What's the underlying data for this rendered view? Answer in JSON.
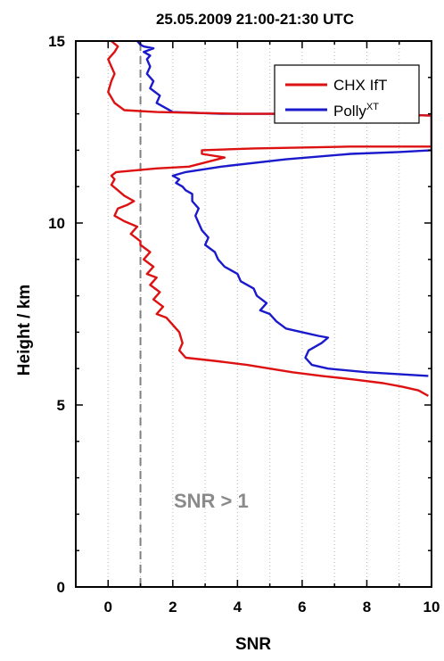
{
  "chart_data": {
    "type": "line",
    "title": "25.05.2009   21:00-21:30 UTC",
    "xlabel": "SNR",
    "ylabel": "Height / km",
    "xlim": [
      -1,
      10
    ],
    "ylim": [
      0,
      15
    ],
    "xticks": [
      "0",
      "2",
      "4",
      "6",
      "8",
      "10"
    ],
    "yticks": [
      "0",
      "5",
      "10",
      "15"
    ],
    "grid": "vertical dotted",
    "legend_position": "top-right",
    "annotation": "SNR > 1",
    "reference_line": {
      "x": 1,
      "style": "dashed",
      "color": "#808080"
    },
    "colors": {
      "chx": "#dd1111",
      "polly": "#1a1acc",
      "reference": "#808080"
    },
    "series": [
      {
        "name": "CHX IfT",
        "legend_label": "CHX IfT",
        "x": [
          9.9,
          9.6,
          9.1,
          8.5,
          7.6,
          6.6,
          5.7,
          5.0,
          4.3,
          3.4,
          2.9,
          2.4,
          2.2,
          2.3,
          2.2,
          2.0,
          1.8,
          1.5,
          1.7,
          1.4,
          1.6,
          1.3,
          1.5,
          1.2,
          1.4,
          1.1,
          1.3,
          1.0,
          1.0,
          0.7,
          0.9,
          0.5,
          0.2,
          0.3,
          0.6,
          0.8,
          0.5,
          0.3,
          0.1,
          0.2,
          0.1,
          0.25,
          1.5,
          2.5,
          3.6,
          2.9,
          2.9,
          4.5,
          7.5,
          10.0,
          10.0,
          7.5,
          4.0,
          1.5,
          0.5,
          0.2,
          0.0,
          0.1,
          0.2,
          0.1,
          0.0,
          0.2,
          0.3,
          0.1
        ],
        "y": [
          5.25,
          5.4,
          5.5,
          5.6,
          5.7,
          5.8,
          5.9,
          6.0,
          6.1,
          6.2,
          6.25,
          6.3,
          6.5,
          6.7,
          7.0,
          7.2,
          7.4,
          7.5,
          7.7,
          7.9,
          8.1,
          8.3,
          8.5,
          8.6,
          8.8,
          9.0,
          9.2,
          9.4,
          9.5,
          9.7,
          9.9,
          10.05,
          10.2,
          10.4,
          10.5,
          10.6,
          10.75,
          10.9,
          11.05,
          11.2,
          11.3,
          11.4,
          11.5,
          11.55,
          11.8,
          11.9,
          12.0,
          12.05,
          12.1,
          12.1,
          12.95,
          13.0,
          13.0,
          13.05,
          13.1,
          13.3,
          13.6,
          13.9,
          14.1,
          14.3,
          14.5,
          14.7,
          14.85,
          15.0
        ]
      },
      {
        "name": "Polly XT",
        "legend_label": "Polly",
        "legend_superscript": "XT",
        "x": [
          9.9,
          8.0,
          6.8,
          6.3,
          6.1,
          6.2,
          6.6,
          6.8,
          6.5,
          6.0,
          5.5,
          5.2,
          5.0,
          4.7,
          4.9,
          4.6,
          4.5,
          4.1,
          4.0,
          3.6,
          3.4,
          3.3,
          3.0,
          3.1,
          2.9,
          2.8,
          2.7,
          2.8,
          2.6,
          2.6,
          2.4,
          2.3,
          2.1,
          2.2,
          2.0,
          2.4,
          3.5,
          5.5,
          7.5,
          9.0,
          10.0,
          10.0,
          8.0,
          5.5,
          3.5,
          2.0,
          1.5,
          1.6,
          1.3,
          1.4,
          1.2,
          1.3,
          1.2,
          1.3,
          1.1,
          1.4,
          1.1,
          1.0,
          0.9
        ],
        "y": [
          5.8,
          5.9,
          6.0,
          6.1,
          6.3,
          6.5,
          6.7,
          6.85,
          6.9,
          7.0,
          7.1,
          7.3,
          7.5,
          7.6,
          7.8,
          8.0,
          8.2,
          8.4,
          8.6,
          8.8,
          9.0,
          9.2,
          9.4,
          9.6,
          9.8,
          10.0,
          10.2,
          10.4,
          10.6,
          10.8,
          10.9,
          11.0,
          11.1,
          11.2,
          11.3,
          11.4,
          11.55,
          11.75,
          11.9,
          11.95,
          12.0,
          12.95,
          13.0,
          13.0,
          13.0,
          13.05,
          13.3,
          13.5,
          13.7,
          13.9,
          14.1,
          14.3,
          14.5,
          14.6,
          14.7,
          14.8,
          14.85,
          14.9,
          15.0
        ]
      }
    ]
  }
}
